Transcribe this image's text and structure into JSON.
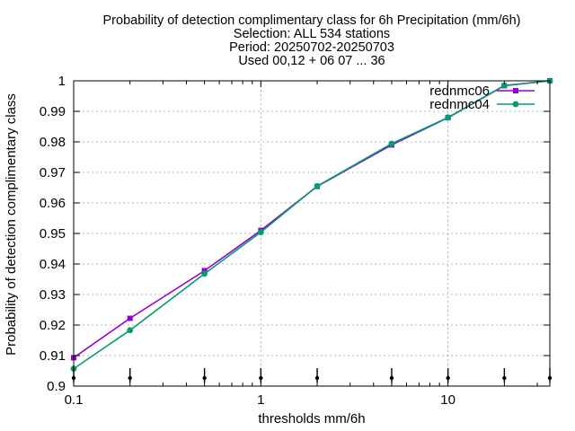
{
  "chart_data": {
    "type": "line",
    "title_lines": [
      "Probability of detection complimentary class  for 6h Precipitation (mm/6h)",
      "Selection: ALL    534 stations",
      "Period: 20250702-20250703",
      "Used 00,12 + 06 07 ... 36"
    ],
    "xlabel": "thresholds mm/6h",
    "ylabel": "Probability of detection complimentary class",
    "x_scale": "log",
    "xlim": [
      0.1,
      35
    ],
    "ylim": [
      0.9,
      1.0
    ],
    "x_ticks": [
      {
        "value": 0.1,
        "label": "0.1"
      },
      {
        "value": 1,
        "label": "1"
      },
      {
        "value": 10,
        "label": "10"
      }
    ],
    "y_ticks": [
      {
        "value": 0.9,
        "label": "0.9"
      },
      {
        "value": 0.91,
        "label": "0.91"
      },
      {
        "value": 0.92,
        "label": "0.92"
      },
      {
        "value": 0.93,
        "label": "0.93"
      },
      {
        "value": 0.94,
        "label": "0.94"
      },
      {
        "value": 0.95,
        "label": "0.95"
      },
      {
        "value": 0.96,
        "label": "0.96"
      },
      {
        "value": 0.97,
        "label": "0.97"
      },
      {
        "value": 0.98,
        "label": "0.98"
      },
      {
        "value": 0.99,
        "label": "0.99"
      },
      {
        "value": 1.0,
        "label": "1"
      }
    ],
    "grid": true,
    "legend_position": "top-right",
    "sample_marker_x": [
      0.1,
      0.2,
      0.5,
      1,
      2,
      5,
      10,
      20,
      35
    ],
    "series": [
      {
        "name": "rednmc06",
        "color": "#9400d3",
        "marker": "square",
        "x": [
          0.1,
          0.2,
          0.5,
          1,
          2,
          5,
          10,
          20,
          35
        ],
        "y": [
          0.9093,
          0.9222,
          0.9378,
          0.951,
          0.9654,
          0.979,
          0.9879,
          0.9984,
          1.0
        ]
      },
      {
        "name": "rednmc04",
        "color": "#009e73",
        "marker": "circle",
        "x": [
          0.1,
          0.2,
          0.5,
          1,
          2,
          5,
          10,
          20,
          35
        ],
        "y": [
          0.9057,
          0.9183,
          0.9368,
          0.9504,
          0.9655,
          0.9794,
          0.988,
          0.9985,
          1.0
        ]
      }
    ]
  }
}
